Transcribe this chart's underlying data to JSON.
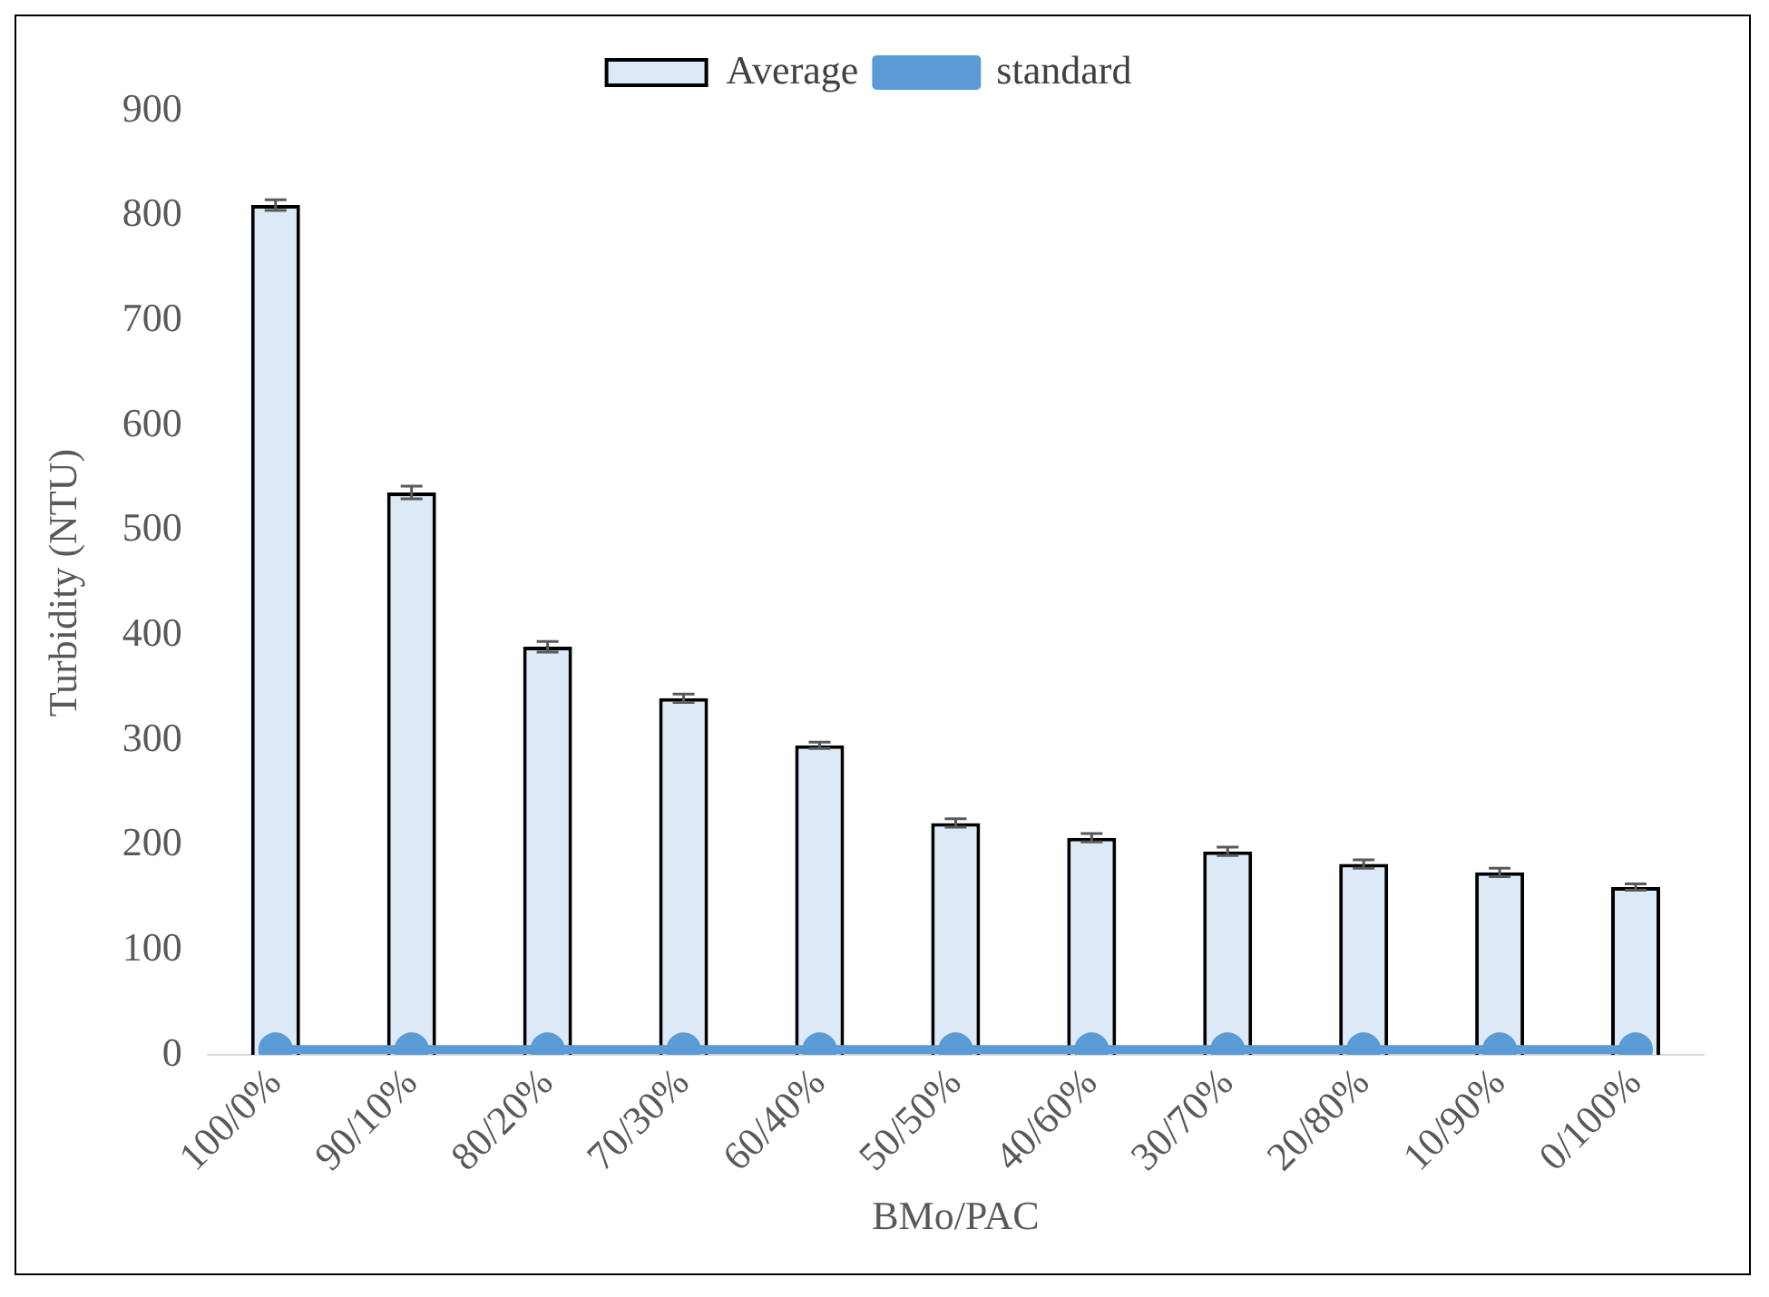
{
  "chart_data": {
    "type": "bar",
    "xlabel": "BMo/PAC",
    "ylabel": "Turbidity (NTU)",
    "categories": [
      "100/0%",
      "90/10%",
      "80/20%",
      "70/30%",
      "60/40%",
      "50/50%",
      "40/60%",
      "30/70%",
      "20/80%",
      "10/90%",
      "0/100%"
    ],
    "series": [
      {
        "name": "Average",
        "color": "#dce9f6",
        "values": [
          810,
          536,
          389,
          340,
          295,
          221,
          207,
          194,
          182,
          174,
          160
        ],
        "errors": [
          5,
          6,
          5,
          4,
          3,
          4,
          4,
          4,
          4,
          4,
          3
        ]
      },
      {
        "name": "standard",
        "type": "line",
        "color": "#5b9bd5",
        "values": [
          5,
          5,
          5,
          5,
          5,
          5,
          5,
          5,
          5,
          5,
          5
        ]
      }
    ],
    "ylim": [
      0,
      900
    ],
    "yticks": [
      0,
      100,
      200,
      300,
      400,
      500,
      600,
      700,
      800,
      900
    ],
    "grid": false,
    "legend": "top",
    "marker": "circle"
  }
}
